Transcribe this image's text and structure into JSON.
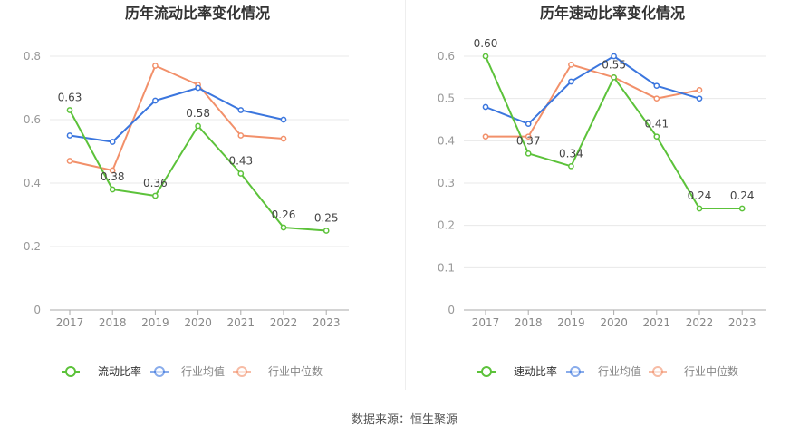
{
  "source_text": "数据来源：恒生聚源",
  "chart_data": [
    {
      "type": "line",
      "title": "历年流动比率变化情况",
      "categories": [
        "2017",
        "2018",
        "2019",
        "2020",
        "2021",
        "2022",
        "2023"
      ],
      "ylim": [
        0,
        0.8
      ],
      "yticks": [
        "0",
        "0.2",
        "0.4",
        "0.6",
        "0.8"
      ],
      "grid": true,
      "legend_position": "bottom",
      "series": [
        {
          "name": "流动比率",
          "color": "#5cc23a",
          "values": [
            0.63,
            0.38,
            0.36,
            0.58,
            0.43,
            0.26,
            0.25
          ],
          "labels": [
            "0.63",
            "0.38",
            "0.36",
            "0.58",
            "0.43",
            "0.26",
            "0.25"
          ]
        },
        {
          "name": "行业均值",
          "color": "#3b76de",
          "values": [
            0.55,
            0.53,
            0.66,
            0.7,
            0.63,
            0.6,
            null
          ]
        },
        {
          "name": "行业中位数",
          "color": "#f2906a",
          "values": [
            0.47,
            0.44,
            0.77,
            0.71,
            0.55,
            0.54,
            null
          ]
        }
      ]
    },
    {
      "type": "line",
      "title": "历年速动比率变化情况",
      "categories": [
        "2017",
        "2018",
        "2019",
        "2020",
        "2021",
        "2022",
        "2023"
      ],
      "ylim": [
        0,
        0.6
      ],
      "yticks": [
        "0",
        "0.1",
        "0.2",
        "0.3",
        "0.4",
        "0.5",
        "0.6"
      ],
      "grid": true,
      "legend_position": "bottom",
      "series": [
        {
          "name": "速动比率",
          "color": "#5cc23a",
          "values": [
            0.6,
            0.37,
            0.34,
            0.55,
            0.41,
            0.24,
            0.24
          ],
          "labels": [
            "0.60",
            "0.37",
            "0.34",
            "0.55",
            "0.41",
            "0.24",
            "0.24"
          ]
        },
        {
          "name": "行业均值",
          "color": "#3b76de",
          "values": [
            0.48,
            0.44,
            0.54,
            0.6,
            0.53,
            0.5,
            null
          ]
        },
        {
          "name": "行业中位数",
          "color": "#f2906a",
          "values": [
            0.41,
            0.41,
            0.58,
            0.55,
            0.5,
            0.52,
            null
          ]
        }
      ]
    }
  ]
}
